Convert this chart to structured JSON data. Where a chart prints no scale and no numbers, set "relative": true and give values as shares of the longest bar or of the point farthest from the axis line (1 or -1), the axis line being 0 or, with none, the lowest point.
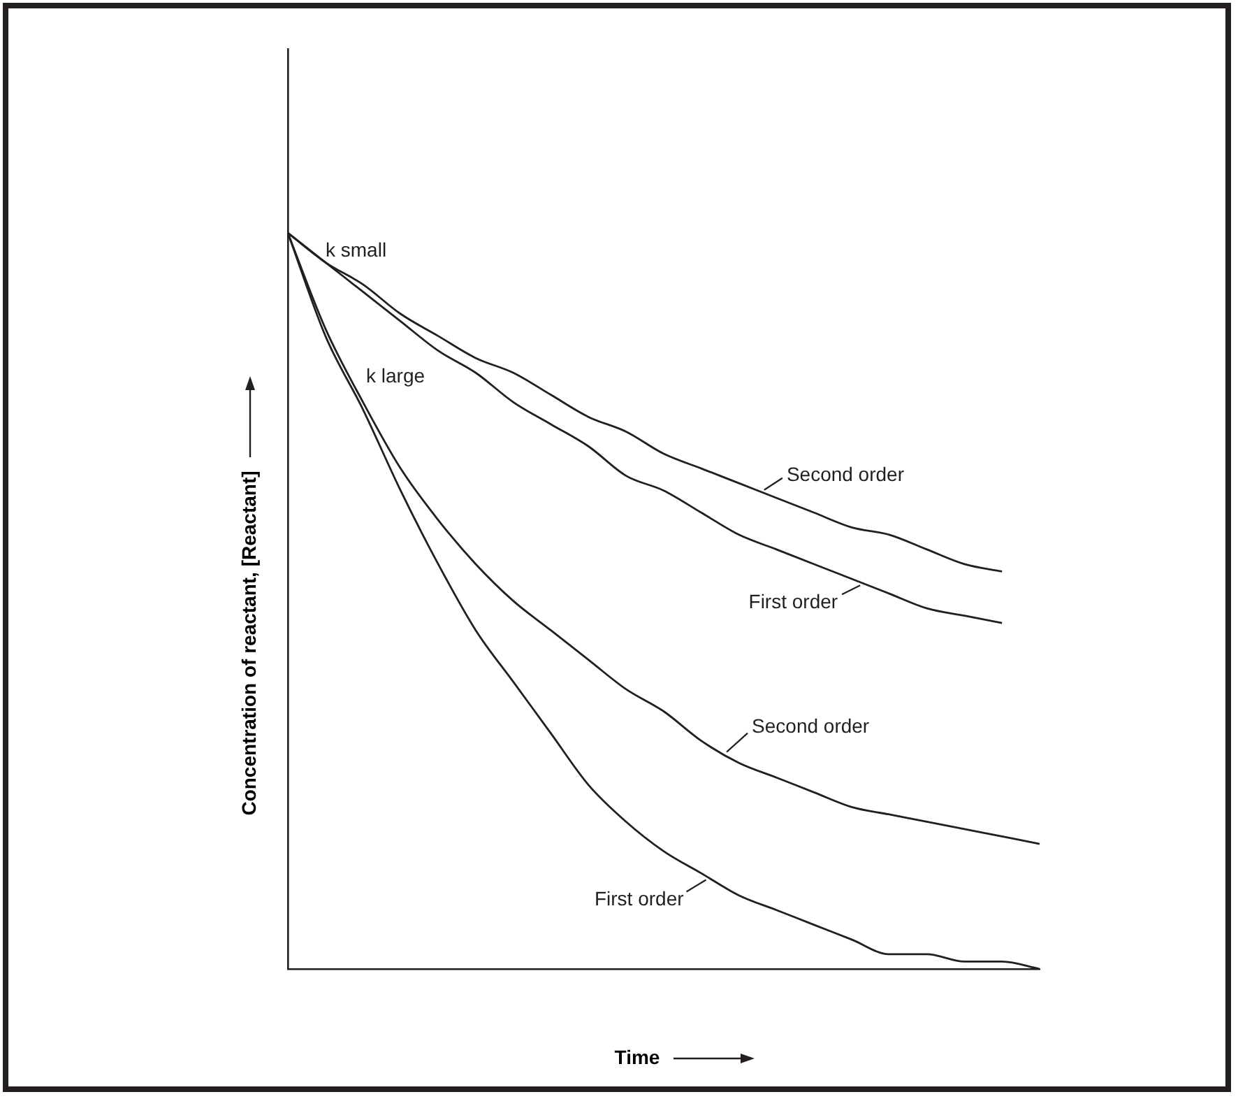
{
  "chart_data": {
    "type": "line",
    "relative": true,
    "xlabel": "Time",
    "ylabel": "Concentration of reactant, [Reactant]",
    "marker": "none",
    "line_style": "solid",
    "categories": [
      null,
      null,
      null,
      null,
      null,
      null,
      null,
      null,
      null,
      null,
      null,
      null,
      null,
      null,
      null,
      null,
      null,
      null,
      null,
      null,
      null
    ],
    "annotations": [
      "k small",
      "k large"
    ],
    "series": [
      {
        "name": "Second order",
        "color": "#231f20",
        "values": [
          1,
          0.96,
          0.93,
          0.89,
          0.86,
          0.83,
          0.81,
          0.78,
          0.75,
          0.73,
          0.7,
          0.68,
          0.66,
          0.64,
          0.62,
          0.6,
          0.59,
          0.57,
          0.55,
          0.54,
          null
        ]
      },
      {
        "name": "First order",
        "color": "#231f20",
        "values": [
          1,
          0.96,
          0.92,
          0.88,
          0.84,
          0.81,
          0.77,
          0.74,
          0.71,
          0.67,
          0.65,
          0.62,
          0.59,
          0.57,
          0.55,
          0.53,
          0.51,
          0.49,
          0.48,
          0.47,
          null
        ]
      },
      {
        "name": "Second order",
        "color": "#231f20",
        "values": [
          1,
          0.87,
          0.77,
          0.68,
          0.61,
          0.55,
          0.5,
          0.46,
          0.42,
          0.38,
          0.35,
          0.31,
          0.28,
          0.26,
          0.24,
          0.22,
          0.21,
          0.2,
          0.19,
          0.18,
          0.17
        ]
      },
      {
        "name": "First order",
        "color": "#231f20",
        "values": [
          1,
          0.86,
          0.76,
          0.65,
          0.55,
          0.46,
          0.39,
          0.32,
          0.25,
          0.2,
          0.16,
          0.13,
          0.1,
          0.08,
          0.06,
          0.04,
          0.02,
          0.02,
          0.01,
          0.01,
          0.0
        ]
      }
    ]
  }
}
